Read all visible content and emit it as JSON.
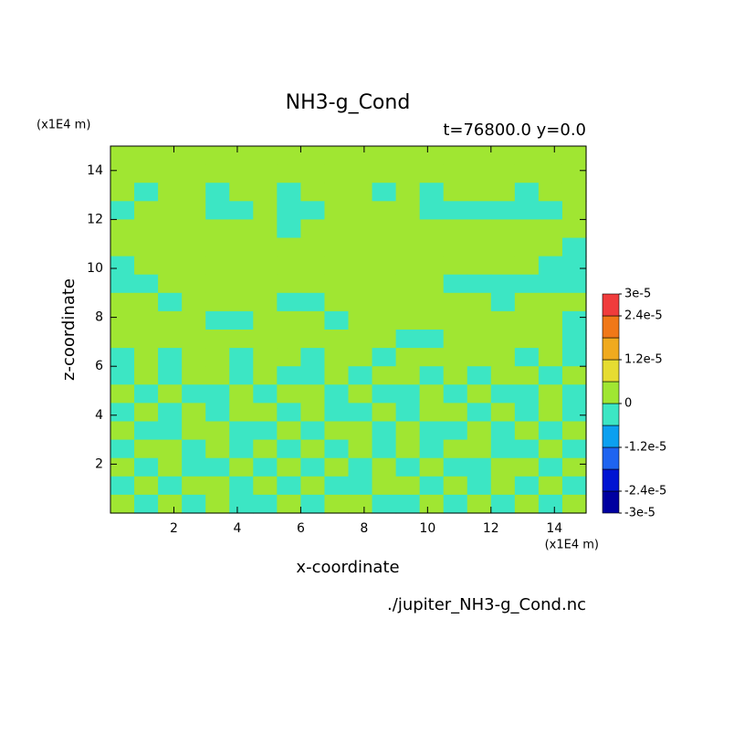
{
  "chart_data": {
    "type": "contour",
    "title": "NH3-g_Cond",
    "subtitle": "t=76800.0 y=0.0",
    "x_label": "x-coordinate",
    "y_label": "z-coordinate",
    "x_unit": "(x1E4 m)",
    "y_unit": "(x1E4 m)",
    "source": "./jupiter_NH3-g_Cond.nc",
    "xlim": [
      0,
      15
    ],
    "ylim": [
      0,
      15
    ],
    "xticks": [
      2,
      4,
      6,
      8,
      10,
      12,
      14
    ],
    "yticks": [
      2,
      4,
      6,
      8,
      10,
      12,
      14
    ],
    "levels": [
      -3e-05,
      -2.4e-05,
      -1.8e-05,
      -1.2e-05,
      -6e-06,
      0,
      6e-06,
      1.2e-05,
      1.8e-05,
      2.4e-05,
      3e-05
    ],
    "colors": [
      "#0000a0",
      "#0014d2",
      "#1e64f0",
      "#0ca0f0",
      "#3ce6c4",
      "#a0e632",
      "#e6dc32",
      "#f0aa1e",
      "#f07818",
      "#f03c3c"
    ],
    "colorbar_ticks": [
      {
        "value": 3e-05,
        "label": "3e-5"
      },
      {
        "value": 2.4e-05,
        "label": "2.4e-5"
      },
      {
        "value": 1.2e-05,
        "label": "1.2e-5"
      },
      0,
      {
        "value": -1.2e-05,
        "label": "-1.2e-5"
      },
      {
        "value": -2.4e-05,
        "label": "-2.4e-5"
      },
      {
        "value": -3e-05,
        "label": "-3e-5"
      }
    ],
    "x": [
      0.375,
      1.125,
      1.875,
      2.625,
      3.375,
      4.125,
      4.875,
      5.625,
      6.375,
      7.125,
      7.875,
      8.625,
      9.375,
      10.125,
      10.875,
      11.625,
      12.375,
      13.125,
      13.875,
      14.625
    ],
    "y": [
      14.625,
      13.875,
      13.125,
      12.375,
      11.625,
      10.875,
      10.125,
      9.375,
      8.625,
      7.875,
      7.125,
      6.375,
      5.625,
      4.875,
      4.125,
      3.375,
      2.625,
      1.875,
      1.125,
      0.375
    ],
    "z": [
      [
        0,
        0,
        0,
        0,
        0,
        0,
        0,
        0,
        0,
        0,
        0,
        0,
        0,
        0,
        0,
        0,
        0,
        0,
        0,
        0
      ],
      [
        0,
        0,
        0,
        0,
        0,
        0,
        0,
        0,
        0,
        0,
        0,
        0,
        0,
        0,
        0,
        0,
        0,
        0,
        0,
        0
      ],
      [
        0,
        -5e-06,
        0,
        0,
        -5e-06,
        0,
        0,
        -5e-06,
        0,
        0,
        0,
        -5e-06,
        0,
        -5e-06,
        0,
        0,
        0,
        -5e-06,
        0,
        0
      ],
      [
        -5e-06,
        0,
        0,
        0,
        -5e-06,
        -5e-06,
        0,
        -5e-06,
        -5e-06,
        0,
        0,
        0,
        0,
        -5e-06,
        -5e-06,
        -5e-06,
        -5e-06,
        -5e-06,
        -5e-06,
        0
      ],
      [
        0,
        0,
        0,
        0,
        0,
        0,
        0,
        -5e-06,
        0,
        0,
        0,
        0,
        0,
        0,
        0,
        0,
        0,
        0,
        0,
        0
      ],
      [
        0,
        0,
        0,
        0,
        0,
        0,
        0,
        0,
        0,
        0,
        0,
        0,
        0,
        0,
        0,
        0,
        0,
        0,
        0,
        -5e-06
      ],
      [
        -5e-06,
        0,
        0,
        0,
        0,
        0,
        0,
        0,
        0,
        0,
        0,
        0,
        0,
        0,
        0,
        0,
        0,
        0,
        -5e-06,
        -5e-06
      ],
      [
        -5e-06,
        -5e-06,
        0,
        0,
        0,
        0,
        0,
        0,
        0,
        0,
        0,
        0,
        0,
        0,
        -5e-06,
        -5e-06,
        -5e-06,
        -5e-06,
        -5e-06,
        -5e-06
      ],
      [
        0,
        0,
        -5e-06,
        0,
        0,
        0,
        0,
        -5e-06,
        -5e-06,
        0,
        0,
        0,
        0,
        0,
        0,
        0,
        -5e-06,
        0,
        0,
        0
      ],
      [
        0,
        0,
        0,
        0,
        -5e-06,
        -5e-06,
        0,
        0,
        0,
        -5e-06,
        0,
        0,
        0,
        0,
        0,
        0,
        0,
        0,
        0,
        -5e-06
      ],
      [
        0,
        0,
        0,
        0,
        0,
        0,
        0,
        0,
        0,
        0,
        0,
        0,
        -5e-06,
        -5e-06,
        0,
        0,
        0,
        0,
        0,
        -5e-06
      ],
      [
        -5e-06,
        0,
        -5e-06,
        0,
        0,
        -5e-06,
        0,
        0,
        -5e-06,
        0,
        0,
        -5e-06,
        0,
        0,
        0,
        0,
        0,
        -5e-06,
        0,
        -5e-06
      ],
      [
        -5e-06,
        0,
        -5e-06,
        0,
        0,
        -5e-06,
        0,
        -5e-06,
        -5e-06,
        0,
        -5e-06,
        0,
        0,
        -5e-06,
        0,
        -5e-06,
        0,
        0,
        -5e-06,
        0
      ],
      [
        0,
        -5e-06,
        0,
        -5e-06,
        -5e-06,
        0,
        -5e-06,
        0,
        0,
        -5e-06,
        0,
        -5e-06,
        -5e-06,
        0,
        -5e-06,
        0,
        -5e-06,
        -5e-06,
        0,
        -5e-06
      ],
      [
        -5e-06,
        0,
        -5e-06,
        0,
        -5e-06,
        0,
        0,
        -5e-06,
        0,
        -5e-06,
        -5e-06,
        0,
        -5e-06,
        0,
        0,
        -5e-06,
        0,
        -5e-06,
        0,
        -5e-06
      ],
      [
        0,
        -5e-06,
        -5e-06,
        0,
        0,
        -5e-06,
        -5e-06,
        0,
        -5e-06,
        0,
        0,
        -5e-06,
        0,
        -5e-06,
        -5e-06,
        0,
        -5e-06,
        0,
        -5e-06,
        0
      ],
      [
        -5e-06,
        0,
        0,
        -5e-06,
        0,
        -5e-06,
        0,
        -5e-06,
        0,
        -5e-06,
        0,
        -5e-06,
        0,
        -5e-06,
        0,
        0,
        -5e-06,
        -5e-06,
        0,
        -5e-06
      ],
      [
        0,
        -5e-06,
        0,
        -5e-06,
        -5e-06,
        0,
        -5e-06,
        0,
        -5e-06,
        0,
        -5e-06,
        0,
        -5e-06,
        0,
        -5e-06,
        -5e-06,
        0,
        0,
        -5e-06,
        0
      ],
      [
        -5e-06,
        0,
        -5e-06,
        0,
        0,
        -5e-06,
        0,
        -5e-06,
        0,
        -5e-06,
        -5e-06,
        0,
        0,
        -5e-06,
        0,
        -5e-06,
        0,
        -5e-06,
        0,
        -5e-06
      ],
      [
        0,
        -5e-06,
        0,
        -5e-06,
        0,
        -5e-06,
        -5e-06,
        0,
        -5e-06,
        0,
        0,
        -5e-06,
        -5e-06,
        0,
        -5e-06,
        0,
        -5e-06,
        0,
        -5e-06,
        0
      ]
    ]
  }
}
